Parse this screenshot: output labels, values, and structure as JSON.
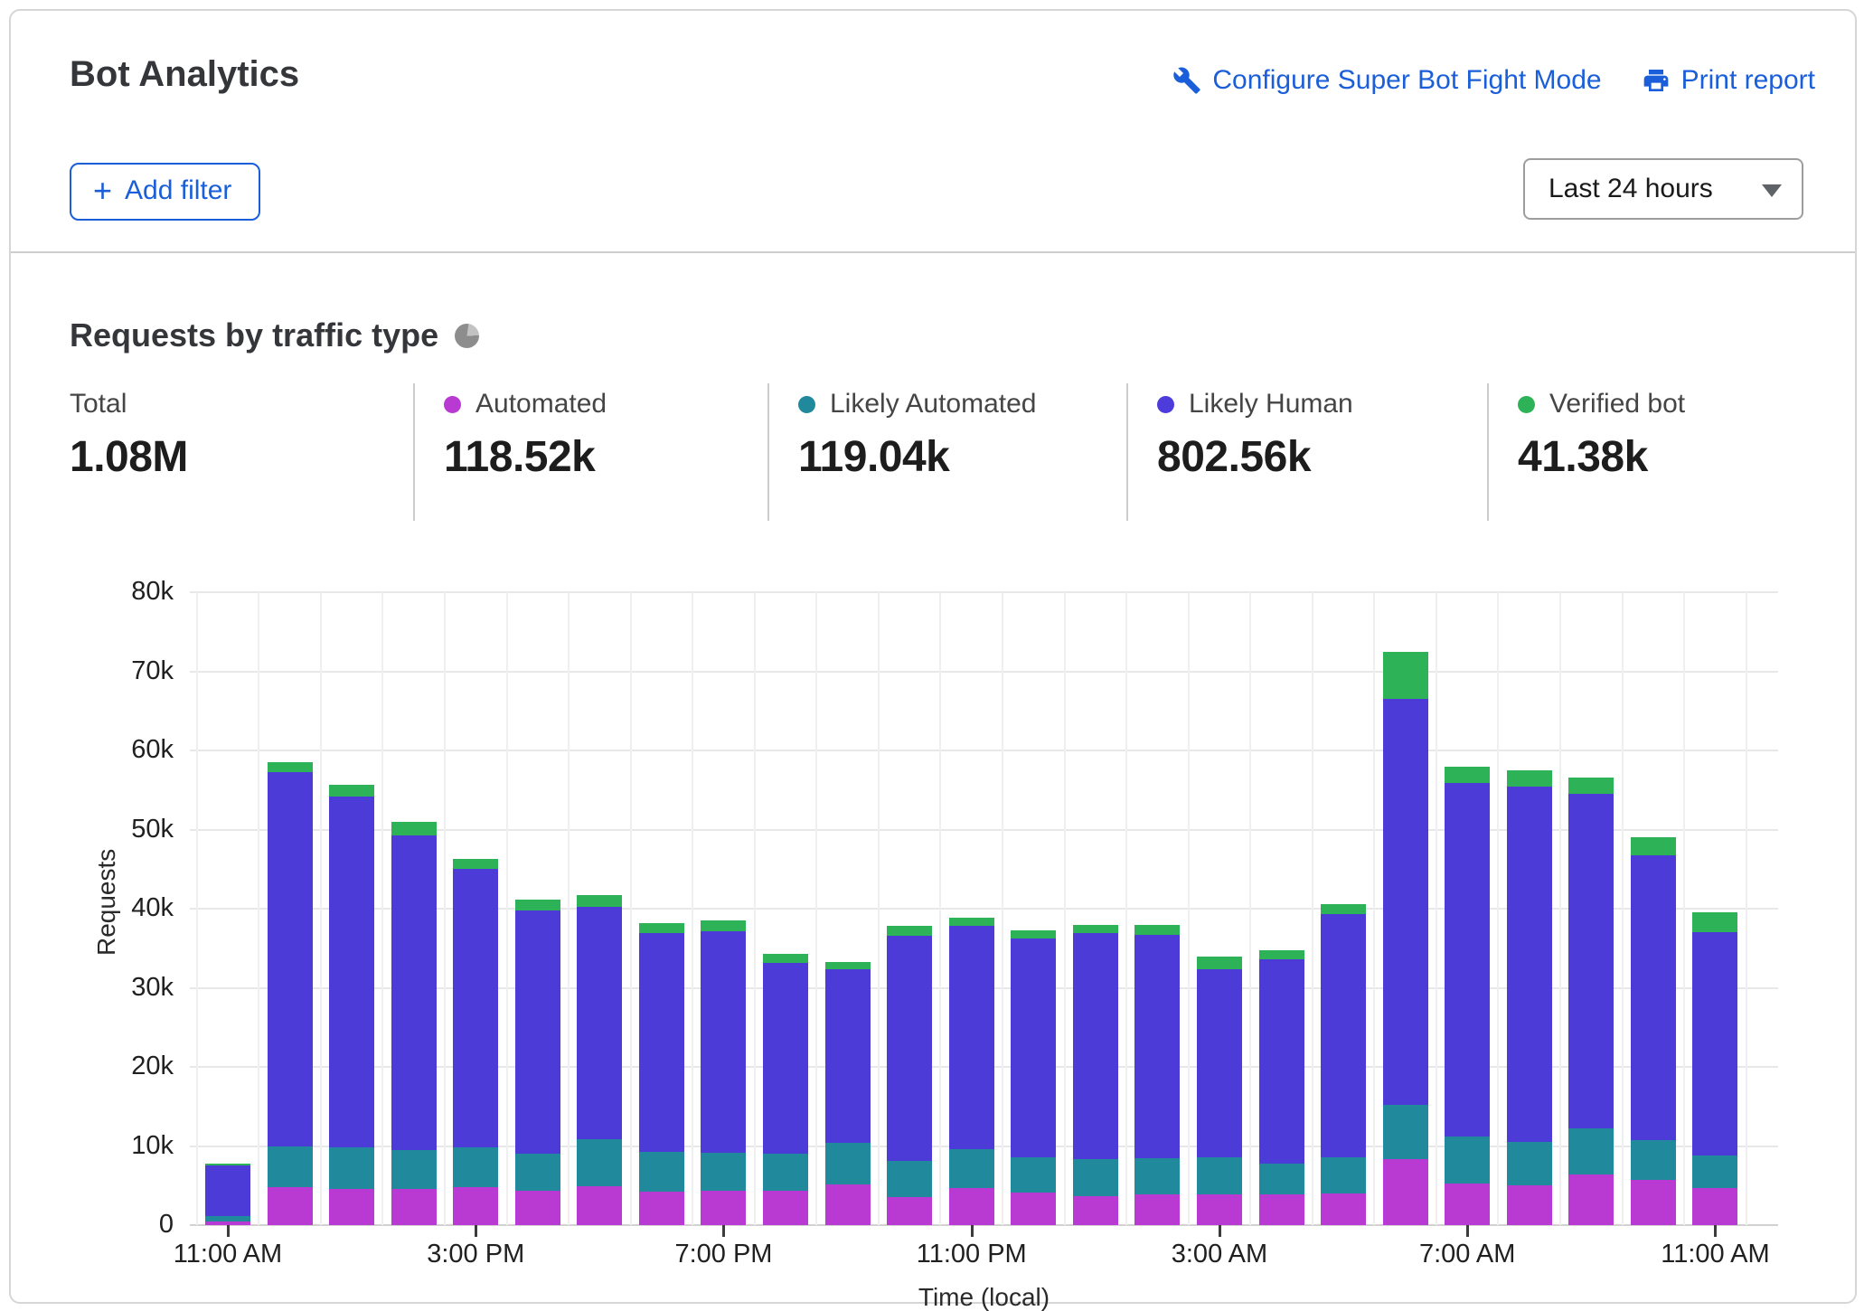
{
  "header": {
    "title": "Bot Analytics",
    "configure_link": "Configure Super Bot Fight Mode",
    "print_link": "Print report",
    "add_filter_label": "Add filter",
    "plus": "+",
    "time_range_value": "Last 24 hours"
  },
  "section": {
    "title": "Requests by traffic type"
  },
  "stats": {
    "items": [
      {
        "label": "Total",
        "value": "1.08M",
        "color": ""
      },
      {
        "label": "Automated",
        "value": "118.52k",
        "color": "#b83ad2"
      },
      {
        "label": "Likely Automated",
        "value": "119.04k",
        "color": "#20899c"
      },
      {
        "label": "Likely Human",
        "value": "802.56k",
        "color": "#4e3bdb"
      },
      {
        "label": "Verified bot",
        "value": "41.38k",
        "color": "#2eb257"
      }
    ]
  },
  "chart_data": {
    "type": "bar",
    "stacked": true,
    "title": "Requests by traffic type",
    "xlabel": "Time (local)",
    "ylabel": "Requests",
    "ylim": [
      0,
      80000
    ],
    "grid": true,
    "legend_position": "top stats row",
    "ytick_labels": [
      "0",
      "10k",
      "20k",
      "30k",
      "40k",
      "50k",
      "60k",
      "70k",
      "80k"
    ],
    "x_tick_labels": [
      "11:00 AM",
      "3:00 PM",
      "7:00 PM",
      "11:00 PM",
      "3:00 AM",
      "7:00 AM",
      "11:00 AM"
    ],
    "x_tick_every": 4,
    "categories": [
      "11:00 AM",
      "12:00 PM",
      "1:00 PM",
      "2:00 PM",
      "3:00 PM",
      "4:00 PM",
      "5:00 PM",
      "6:00 PM",
      "7:00 PM",
      "8:00 PM",
      "9:00 PM",
      "10:00 PM",
      "11:00 PM",
      "12:00 AM",
      "1:00 AM",
      "2:00 AM",
      "3:00 AM",
      "4:00 AM",
      "5:00 AM",
      "6:00 AM",
      "7:00 AM",
      "8:00 AM",
      "9:00 AM",
      "10:00 AM",
      "11:00 AM"
    ],
    "series": [
      {
        "name": "Automated",
        "color": "#b83ad2",
        "values": [
          500,
          4800,
          4600,
          4600,
          4800,
          4400,
          4900,
          4200,
          4400,
          4300,
          5200,
          3600,
          4700,
          4100,
          3700,
          3900,
          3900,
          3900,
          4000,
          8300,
          5300,
          5000,
          6400,
          5700,
          4700
        ]
      },
      {
        "name": "Likely Automated",
        "color": "#20899c",
        "values": [
          700,
          5100,
          5200,
          4900,
          5000,
          4600,
          6000,
          5100,
          4800,
          4700,
          5200,
          4500,
          4900,
          4500,
          4600,
          4600,
          4700,
          3900,
          4600,
          6900,
          5900,
          5500,
          5800,
          5000,
          4100
        ]
      },
      {
        "name": "Likely Human",
        "color": "#4c3bd6",
        "values": [
          6300,
          47400,
          44400,
          39800,
          35200,
          30800,
          29300,
          27600,
          28000,
          24200,
          22000,
          28500,
          28200,
          27600,
          28600,
          28200,
          23700,
          25800,
          30700,
          51300,
          44700,
          44900,
          42300,
          36100,
          28200
        ]
      },
      {
        "name": "Verified bot",
        "color": "#2eb257",
        "values": [
          300,
          1200,
          1500,
          1700,
          1300,
          1400,
          1500,
          1300,
          1300,
          1100,
          900,
          1200,
          1100,
          1100,
          1000,
          1300,
          1700,
          1200,
          1300,
          6000,
          2100,
          2100,
          2100,
          2200,
          2600
        ]
      }
    ]
  }
}
